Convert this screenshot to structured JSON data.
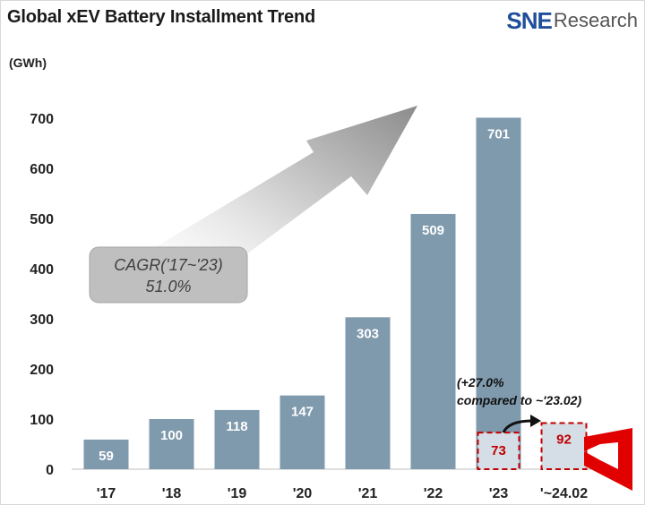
{
  "header": {
    "title": "Global xEV Battery Installment Trend",
    "unit": "(GWh)",
    "logo_brand": "SNE",
    "logo_name": "Research"
  },
  "annotations": {
    "cagr_line1": "CAGR('17~'23)",
    "cagr_line2": "51.0%",
    "growth_line1": "(+27.0%",
    "growth_line2": "compared to ~'23.02)"
  },
  "colors": {
    "bar": "#7f9aad",
    "bar_partial": "#d5dde6",
    "highlight": "#c00000",
    "arrow": "#a9a9a9",
    "cagr_box": "#bfbfbf"
  },
  "chart_data": {
    "type": "bar",
    "title": "Global xEV Battery Installment Trend",
    "ylabel": "(GWh)",
    "ylim": [
      0,
      700
    ],
    "yticks": [
      0,
      100,
      200,
      300,
      400,
      500,
      600,
      700
    ],
    "grid": false,
    "categories": [
      "'17",
      "'18",
      "'19",
      "'20",
      "'21",
      "'22",
      "'23",
      "'~24.02"
    ],
    "series": [
      {
        "values": [
          59,
          100,
          118,
          147,
          303,
          509,
          701,
          92
        ]
      }
    ],
    "inset_comparison": {
      "category": "'23",
      "value": 73
    },
    "highlighted_category": "'~24.02"
  }
}
